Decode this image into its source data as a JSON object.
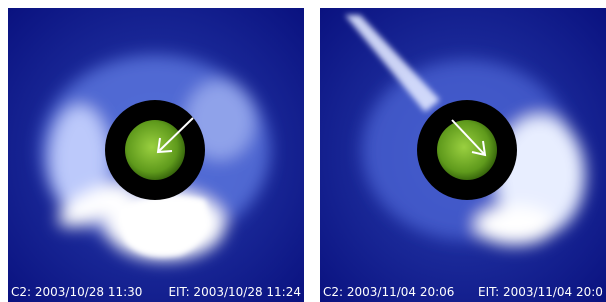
{
  "panels": [
    {
      "c2_label": "C2: 2003/10/28 11:30",
      "eit_label": "EIT: 2003/10/28 11:24"
    },
    {
      "c2_label": "C2: 2003/11/04 20:06",
      "eit_label": "EIT: 2003/11/04 20:0"
    }
  ]
}
